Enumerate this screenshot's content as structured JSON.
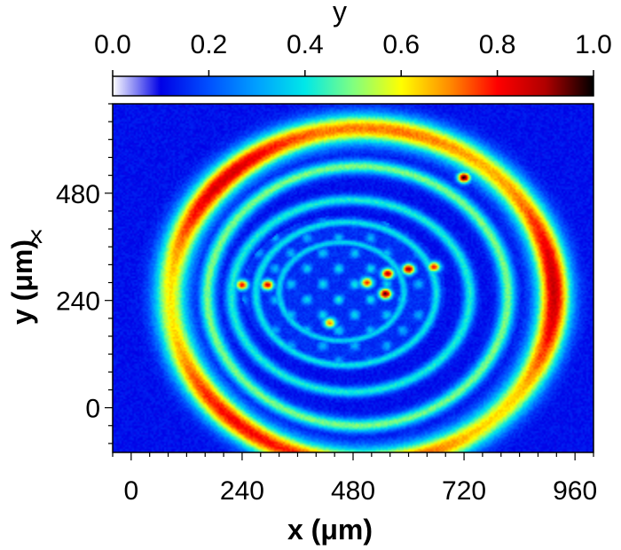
{
  "chart_data": {
    "type": "heatmap",
    "title": "",
    "xlabel": "x (μm)",
    "ylabel": "y (μm)",
    "ylabel_overlay_glyph": "x",
    "xlim": [
      -40,
      1000
    ],
    "ylim": [
      -100,
      680
    ],
    "x_ticks": [
      0,
      240,
      480,
      720,
      960
    ],
    "x_tick_labels": [
      "0",
      "240",
      "480",
      "720",
      "960"
    ],
    "y_ticks": [
      0,
      240,
      480
    ],
    "y_tick_labels": [
      "0",
      "240",
      "480"
    ],
    "colorbar": {
      "title": "y",
      "range": [
        0.0,
        1.0
      ],
      "ticks": [
        0.0,
        0.2,
        0.4,
        0.6,
        0.8,
        1.0
      ],
      "tick_labels": [
        "0.0",
        "0.2",
        "0.4",
        "0.6",
        "0.8",
        "1.0"
      ],
      "colormap": [
        "#ffffff",
        "#0000e6",
        "#0050ff",
        "#00a0ff",
        "#00e8e8",
        "#80ff80",
        "#ffff00",
        "#ff8c00",
        "#ff0000",
        "#b00000",
        "#000000"
      ],
      "placement": "top"
    },
    "background_value": 0.12,
    "rings": [
      {
        "cx": 500,
        "cy": 250,
        "rx": 415,
        "ry": 375,
        "width": 46,
        "value": 0.74
      },
      {
        "cx": 490,
        "cy": 250,
        "rx": 325,
        "ry": 290,
        "width": 22,
        "value": 0.5
      },
      {
        "cx": 475,
        "cy": 250,
        "rx": 258,
        "ry": 215,
        "width": 16,
        "value": 0.42
      },
      {
        "cx": 465,
        "cy": 255,
        "rx": 195,
        "ry": 160,
        "width": 12,
        "value": 0.4
      },
      {
        "cx": 455,
        "cy": 260,
        "rx": 135,
        "ry": 110,
        "width": 10,
        "value": 0.38
      }
    ],
    "inner_spots": [
      {
        "x": 240,
        "y": 275,
        "value": 0.82
      },
      {
        "x": 295,
        "y": 275,
        "value": 0.85
      },
      {
        "x": 600,
        "y": 310,
        "value": 0.93
      },
      {
        "x": 550,
        "y": 255,
        "value": 0.97
      },
      {
        "x": 555,
        "y": 300,
        "value": 0.9
      },
      {
        "x": 655,
        "y": 315,
        "value": 0.8
      },
      {
        "x": 720,
        "y": 515,
        "value": 1.0
      },
      {
        "x": 510,
        "y": 280,
        "value": 0.78
      },
      {
        "x": 430,
        "y": 190,
        "value": 0.7
      }
    ]
  }
}
